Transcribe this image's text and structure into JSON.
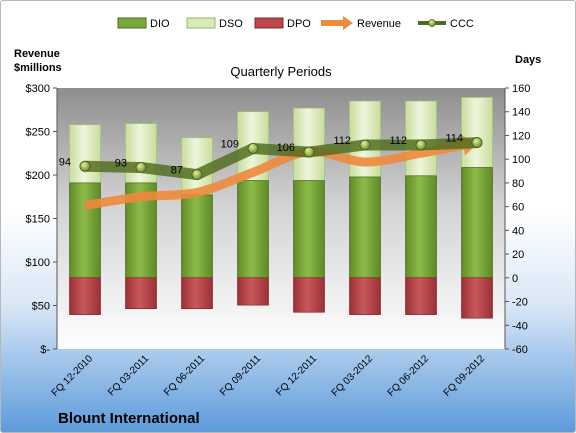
{
  "chart_data": {
    "type": "bar",
    "title": "Quarterly Periods",
    "company": "Blount International",
    "left_axis_label": [
      "Revenue",
      "$millions"
    ],
    "right_axis_label": "Days",
    "categories": [
      "FQ 12-2010",
      "FQ 03-2011",
      "FQ 06-2011",
      "FQ 09-2011",
      "FQ 12-2011",
      "FQ 03-2012",
      "FQ 06-2012",
      "FQ 09-2012"
    ],
    "left_ticks": [
      "$-",
      "$50",
      "$100",
      "$150",
      "$200",
      "$250",
      "$300"
    ],
    "right_ticks": [
      "-60",
      "-40",
      "-20",
      "0",
      "20",
      "40",
      "60",
      "80",
      "100",
      "120",
      "140",
      "160"
    ],
    "ylim_left": [
      0,
      300
    ],
    "ylim_right": [
      -60,
      160
    ],
    "series": [
      {
        "name": "DIO",
        "axis": "right",
        "values": [
          80,
          80,
          70,
          82,
          82,
          85,
          86,
          93
        ]
      },
      {
        "name": "DSO",
        "axis": "right",
        "values": [
          49,
          50,
          48,
          58,
          61,
          64,
          63,
          59
        ]
      },
      {
        "name": "DPO",
        "axis": "right",
        "values": [
          -31,
          -26,
          -26,
          -23,
          -29,
          -31,
          -31,
          -34
        ]
      },
      {
        "name": "Revenue",
        "axis": "left",
        "values": [
          165,
          175,
          180,
          203,
          227,
          215,
          225,
          237
        ]
      },
      {
        "name": "CCC",
        "axis": "right",
        "values": [
          94,
          93,
          87,
          109,
          106,
          112,
          112,
          114
        ]
      }
    ],
    "data_labels": [
      "94",
      "93",
      "87",
      "109",
      "106",
      "112",
      "112",
      "114"
    ],
    "colors": {
      "DIO": "#7aa83a",
      "DSO": "#d8eab6",
      "DPO": "#b9474b",
      "Revenue": "#ee8a3c",
      "CCC": "#4f6b1f"
    },
    "grid": false,
    "legend_position": "top"
  }
}
